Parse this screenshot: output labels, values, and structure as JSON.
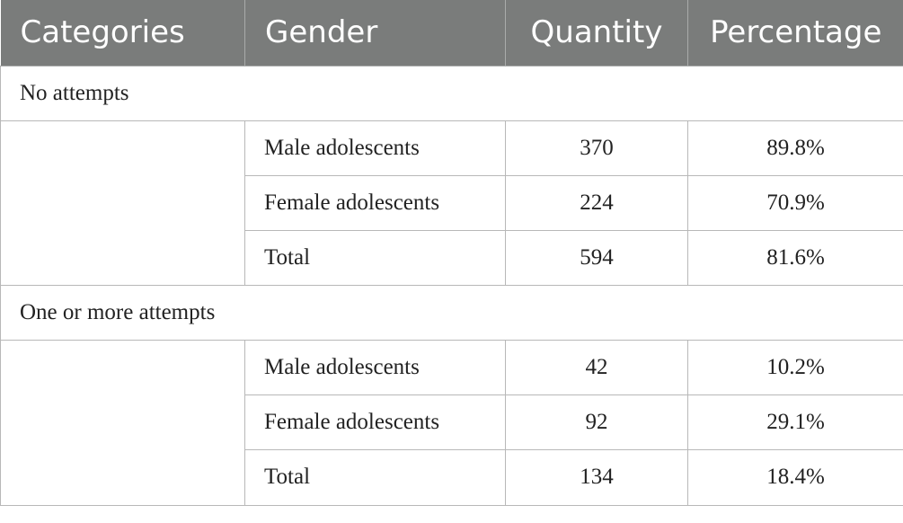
{
  "table": {
    "headers": [
      "Categories",
      "Gender",
      "Quantity",
      "Percentage"
    ],
    "sections": [
      {
        "label": "No attempts",
        "rows": [
          {
            "gender": "Male adolescents",
            "quantity": "370",
            "percentage": "89.8%"
          },
          {
            "gender": "Female adolescents",
            "quantity": "224",
            "percentage": "70.9%"
          },
          {
            "gender": "Total",
            "quantity": "594",
            "percentage": "81.6%"
          }
        ]
      },
      {
        "label": "One or more attempts",
        "rows": [
          {
            "gender": "Male adolescents",
            "quantity": "42",
            "percentage": "10.2%"
          },
          {
            "gender": "Female adolescents",
            "quantity": "92",
            "percentage": "29.1%"
          },
          {
            "gender": "Total",
            "quantity": "134",
            "percentage": "18.4%"
          }
        ]
      }
    ]
  },
  "colors": {
    "header_background": "#7a7c7b",
    "header_text": "#ffffff",
    "grid_line": "#b8b8b8"
  }
}
